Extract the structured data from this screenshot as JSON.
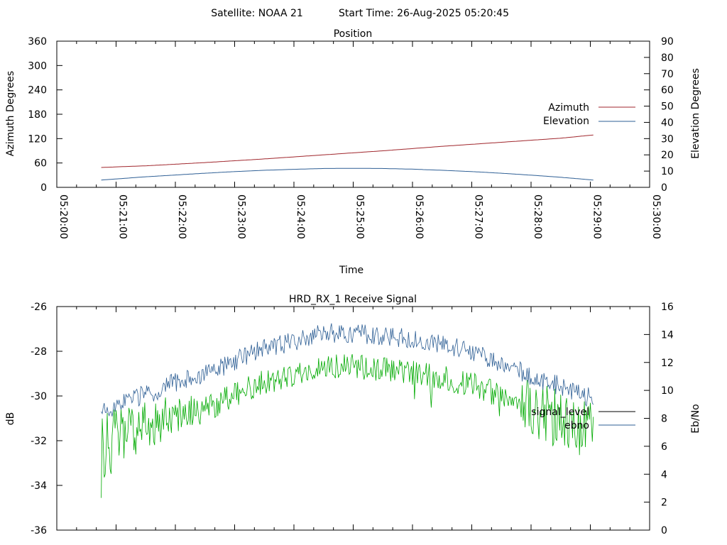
{
  "header": {
    "satellite": "Satellite: NOAA 21",
    "start_time": "Start Time: 26-Aug-2025 05:20:45"
  },
  "colors": {
    "azimuth": "#a0262c",
    "elevation": "#2e5f95",
    "signal_level": "#000000",
    "ebno_legend": "#2e5f95",
    "ebno_curve_low": "#00aa00",
    "ebno_curve_high": "#2e5f95"
  },
  "chart_data": [
    {
      "type": "line",
      "title": "Position",
      "xlabel": "Time",
      "ylabel": "Azimuth Degrees",
      "y2label": "Elevation Degrees",
      "x_ticks": [
        "05:20:00",
        "05:21:00",
        "05:22:00",
        "05:23:00",
        "05:24:00",
        "05:25:00",
        "05:26:00",
        "05:27:00",
        "05:28:00",
        "05:29:00",
        "05:30:00"
      ],
      "xlim": [
        "05:20:00",
        "05:30:00"
      ],
      "ylim": [
        0,
        360
      ],
      "y_ticks": [
        0,
        60,
        120,
        180,
        240,
        300,
        360
      ],
      "y2lim": [
        0,
        90
      ],
      "y2_ticks": [
        0,
        10,
        20,
        30,
        40,
        50,
        60,
        70,
        80,
        90
      ],
      "legend_position": "right",
      "series": [
        {
          "name": "Azimuth",
          "axis": "left",
          "x": [
            "05:20:45",
            "05:21:30",
            "05:22:30",
            "05:23:30",
            "05:24:30",
            "05:25:30",
            "05:26:30",
            "05:27:30",
            "05:28:30",
            "05:29:03"
          ],
          "y": [
            49,
            53,
            61,
            70,
            80,
            90,
            101,
            111,
            121,
            129
          ]
        },
        {
          "name": "Elevation",
          "axis": "right",
          "x": [
            "05:20:45",
            "05:21:30",
            "05:22:00",
            "05:22:30",
            "05:23:00",
            "05:23:30",
            "05:24:00",
            "05:24:30",
            "05:25:00",
            "05:25:30",
            "05:26:00",
            "05:26:30",
            "05:27:00",
            "05:27:30",
            "05:28:00",
            "05:28:30",
            "05:29:03"
          ],
          "y": [
            4.5,
            6.5,
            7.6,
            8.7,
            9.7,
            10.5,
            11.1,
            11.6,
            11.7,
            11.6,
            11.2,
            10.5,
            9.7,
            8.7,
            7.5,
            6.2,
            4.5
          ]
        }
      ]
    },
    {
      "type": "line",
      "title": "HRD_RX_1 Receive Signal",
      "ylabel": "dB",
      "y2label": "Eb/No",
      "xlim": [
        "05:20:00",
        "05:30:00"
      ],
      "ylim": [
        -36,
        -26
      ],
      "y_ticks": [
        -36,
        -34,
        -32,
        -30,
        -28,
        -26
      ],
      "y2lim": [
        0,
        16
      ],
      "y2_ticks": [
        0,
        2,
        4,
        6,
        8,
        10,
        12,
        14,
        16
      ],
      "legend_position": "right",
      "series": [
        {
          "name": "signal_level",
          "axis": "left",
          "x": [],
          "y": []
        },
        {
          "name": "ebno",
          "axis": "right",
          "x": [
            "05:20:45",
            "05:21:00",
            "05:21:15",
            "05:21:30",
            "05:21:45",
            "05:22:00",
            "05:22:30",
            "05:23:00",
            "05:23:30",
            "05:24:00",
            "05:24:30",
            "05:25:00",
            "05:25:30",
            "05:26:00",
            "05:26:30",
            "05:27:00",
            "05:27:30",
            "05:28:00",
            "05:28:30",
            "05:28:45",
            "05:29:03"
          ],
          "y": [
            7.5,
            8.2,
            8.6,
            8.9,
            9.3,
            9.8,
            10.3,
            11.3,
            12.2,
            12.7,
            13.3,
            13.3,
            13.1,
            12.9,
            12.5,
            12.0,
            11.2,
            10.2,
            9.5,
            9.0,
            8.6
          ]
        }
      ]
    }
  ]
}
